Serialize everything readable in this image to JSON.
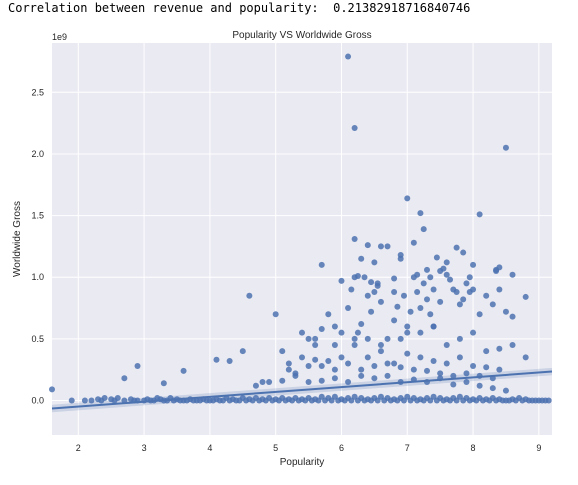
{
  "output": {
    "text": "Correlation between revenue and popularity:  0.21382918716840746"
  },
  "chart_data": {
    "type": "scatter",
    "title": "Popularity VS Worldwide Gross",
    "xlabel": "Popularity",
    "ylabel": "Worldwide Gross",
    "y_offset_label": "1e9",
    "xlim": [
      1.6,
      9.2
    ],
    "ylim": [
      -0.28,
      2.9
    ],
    "x_ticks": [
      2,
      3,
      4,
      5,
      6,
      7,
      8,
      9
    ],
    "x_tick_labels": [
      "2",
      "3",
      "4",
      "5",
      "6",
      "7",
      "8",
      "9"
    ],
    "y_ticks": [
      0.0,
      0.5,
      1.0,
      1.5,
      2.0,
      2.5
    ],
    "y_tick_labels": [
      "0.0",
      "0.5",
      "1.0",
      "1.5",
      "2.0",
      "2.5"
    ],
    "grid": true,
    "colors": {
      "point": "#4c72b0",
      "background": "#eaeaf2",
      "grid": "#ffffff",
      "regression": "#4c72b0"
    },
    "regression": {
      "x": [
        1.6,
        9.2
      ],
      "y": [
        -0.065,
        0.235
      ],
      "ci_halfwidth": [
        0.03,
        0.03
      ]
    },
    "points": {
      "x": [
        1.6,
        1.9,
        2.1,
        2.2,
        2.3,
        2.35,
        2.4,
        2.5,
        2.55,
        2.6,
        2.7,
        2.8,
        2.85,
        2.9,
        3.0,
        3.05,
        3.1,
        3.15,
        3.2,
        3.25,
        3.3,
        3.35,
        3.4,
        3.45,
        3.5,
        3.55,
        3.6,
        3.65,
        3.7,
        3.75,
        3.8,
        3.85,
        3.9,
        3.95,
        4.0,
        4.05,
        4.1,
        4.15,
        4.2,
        4.25,
        4.3,
        4.35,
        4.4,
        4.45,
        4.5,
        4.55,
        4.6,
        4.65,
        4.7,
        4.75,
        4.8,
        4.85,
        4.9,
        4.95,
        5.0,
        5.05,
        5.1,
        5.15,
        5.2,
        5.25,
        5.3,
        5.35,
        5.4,
        5.45,
        5.5,
        5.55,
        5.6,
        5.65,
        5.7,
        5.75,
        5.8,
        5.85,
        5.9,
        5.95,
        6.0,
        6.05,
        6.1,
        6.15,
        6.2,
        6.25,
        6.3,
        6.35,
        6.4,
        6.45,
        6.5,
        6.55,
        6.6,
        6.65,
        6.7,
        6.75,
        6.8,
        6.85,
        6.9,
        6.95,
        7.0,
        7.05,
        7.1,
        7.15,
        7.2,
        7.25,
        7.3,
        7.35,
        7.4,
        7.45,
        7.5,
        7.55,
        7.6,
        7.65,
        7.7,
        7.75,
        7.8,
        7.85,
        7.9,
        7.95,
        8.0,
        8.05,
        8.1,
        8.15,
        8.2,
        8.25,
        8.3,
        8.35,
        8.4,
        8.45,
        8.5,
        8.55,
        8.6,
        8.65,
        8.7,
        8.75,
        8.8,
        8.85,
        8.9,
        8.95,
        9.0,
        9.05,
        9.1,
        9.15,
        2.7,
        2.9,
        3.3,
        3.6,
        4.1,
        4.3,
        4.5,
        4.6,
        4.8,
        5.0,
        5.2,
        5.4,
        5.6,
        5.7,
        5.8,
        5.9,
        6.1,
        6.15,
        6.2,
        6.25,
        6.3,
        6.35,
        6.4,
        6.45,
        6.5,
        6.55,
        6.6,
        6.7,
        6.8,
        6.9,
        6.95,
        7.0,
        7.05,
        7.1,
        7.15,
        7.2,
        7.25,
        7.3,
        7.35,
        7.4,
        7.5,
        7.6,
        7.7,
        7.75,
        7.8,
        7.85,
        7.9,
        7.95,
        8.0,
        8.1,
        8.2,
        8.3,
        8.35,
        8.4,
        8.5,
        8.6,
        8.8,
        6.1,
        6.2,
        8.5,
        7.0,
        7.2,
        8.1,
        7.25,
        6.2,
        6.4,
        6.6,
        7.75,
        5.7,
        6.3,
        6.5,
        6.9,
        7.6,
        7.85,
        8.4,
        8.35,
        8.6,
        7.3,
        7.45,
        7.95,
        6.45,
        6.2,
        6.8,
        7.1,
        7.5,
        7.65,
        6.9,
        7.55,
        8.0,
        6.0,
        6.7,
        7.15,
        7.35,
        6.55,
        6.25,
        6.85,
        7.4,
        5.1,
        5.5,
        5.6,
        5.9,
        6.0,
        6.4,
        6.6,
        6.8,
        7.0,
        7.2,
        7.4,
        7.6,
        7.8,
        8.0,
        8.2,
        8.4,
        8.6,
        8.8,
        5.2,
        5.4,
        5.6,
        5.8,
        6.0,
        6.2,
        6.4,
        6.6,
        6.8,
        7.0,
        7.2,
        7.4,
        7.6,
        7.8,
        8.0,
        8.2,
        8.4,
        5.3,
        5.5,
        5.7,
        5.9,
        6.1,
        6.3,
        6.5,
        6.7,
        6.9,
        7.1,
        7.3,
        7.5,
        7.7,
        7.9,
        8.1,
        8.3,
        4.7,
        4.9,
        5.1,
        5.3,
        5.5,
        5.7,
        5.9,
        6.1,
        6.3,
        6.5,
        6.7,
        6.9,
        7.1,
        7.3,
        7.5,
        7.7,
        7.9,
        8.1,
        8.3,
        8.5
      ],
      "y": [
        0.09,
        0.0,
        0.0,
        0.0,
        0.01,
        0.0,
        0.02,
        0.01,
        0.0,
        0.02,
        0.0,
        0.01,
        0.0,
        0.0,
        0.0,
        0.01,
        0.0,
        0.0,
        0.02,
        0.01,
        0.0,
        0.0,
        0.02,
        0.0,
        0.01,
        0.0,
        0.0,
        0.0,
        0.01,
        0.0,
        0.0,
        0.0,
        0.01,
        0.0,
        0.0,
        0.0,
        0.01,
        0.0,
        0.0,
        0.02,
        0.0,
        0.01,
        0.0,
        0.0,
        0.02,
        0.0,
        0.01,
        0.0,
        0.02,
        0.0,
        0.01,
        0.0,
        0.02,
        0.0,
        0.01,
        0.0,
        0.02,
        0.0,
        0.01,
        0.0,
        0.02,
        0.0,
        0.01,
        0.0,
        0.02,
        0.0,
        0.01,
        0.0,
        0.03,
        0.0,
        0.02,
        0.0,
        0.03,
        0.0,
        0.01,
        0.0,
        0.02,
        0.0,
        0.03,
        0.0,
        0.02,
        0.0,
        0.01,
        0.0,
        0.02,
        0.0,
        0.03,
        0.0,
        0.02,
        0.0,
        0.01,
        0.0,
        0.02,
        0.0,
        0.03,
        0.0,
        0.02,
        0.0,
        0.01,
        0.0,
        0.02,
        0.0,
        0.03,
        0.0,
        0.02,
        0.0,
        0.01,
        0.0,
        0.02,
        0.0,
        0.03,
        0.0,
        0.02,
        0.0,
        0.01,
        0.0,
        0.02,
        0.0,
        0.01,
        0.0,
        0.02,
        0.0,
        0.01,
        0.0,
        0.0,
        0.0,
        0.01,
        0.0,
        0.02,
        0.0,
        0.01,
        0.0,
        0.0,
        0.0,
        0.0,
        0.0,
        0.0,
        0.0,
        0.18,
        0.28,
        0.14,
        0.24,
        0.33,
        0.32,
        0.4,
        0.85,
        0.15,
        0.7,
        0.25,
        0.55,
        0.5,
        0.58,
        0.7,
        0.45,
        0.75,
        0.9,
        0.5,
        0.55,
        0.62,
        1.0,
        0.85,
        0.72,
        0.88,
        0.95,
        0.8,
        0.5,
        0.88,
        0.5,
        0.85,
        0.55,
        0.72,
        1.0,
        0.88,
        0.75,
        0.95,
        0.82,
        0.7,
        0.9,
        0.8,
        1.02,
        0.9,
        0.88,
        0.78,
        0.82,
        0.95,
        0.88,
        0.9,
        0.7,
        0.85,
        0.78,
        1.06,
        0.9,
        0.72,
        0.68,
        0.84,
        2.79,
        2.21,
        2.05,
        1.64,
        1.52,
        1.51,
        1.39,
        1.31,
        1.26,
        1.25,
        1.24,
        1.1,
        1.15,
        1.12,
        1.18,
        1.12,
        1.2,
        1.08,
        1.05,
        1.02,
        1.06,
        1.16,
        1.0,
        0.96,
        1.0,
        0.99,
        1.28,
        1.05,
        0.98,
        1.15,
        1.07,
        1.1,
        0.97,
        1.25,
        1.02,
        1.0,
        0.93,
        1.01,
        0.76,
        0.6,
        0.4,
        0.5,
        0.45,
        0.6,
        0.55,
        0.5,
        0.45,
        0.65,
        0.6,
        0.55,
        0.6,
        0.45,
        0.5,
        0.55,
        0.4,
        0.42,
        0.45,
        0.35,
        0.3,
        0.35,
        0.33,
        0.32,
        0.35,
        0.45,
        0.35,
        0.4,
        0.3,
        0.38,
        0.35,
        0.32,
        0.3,
        0.35,
        0.28,
        0.27,
        0.25,
        0.22,
        0.28,
        0.28,
        0.25,
        0.3,
        0.25,
        0.28,
        0.3,
        0.27,
        0.25,
        0.24,
        0.22,
        0.2,
        0.22,
        0.2,
        0.18,
        0.12,
        0.15,
        0.16,
        0.2,
        0.15,
        0.16,
        0.18,
        0.15,
        0.2,
        0.18,
        0.2,
        0.15,
        0.17,
        0.15,
        0.18,
        0.13,
        0.15,
        0.12,
        0.1,
        0.08
      ]
    }
  }
}
